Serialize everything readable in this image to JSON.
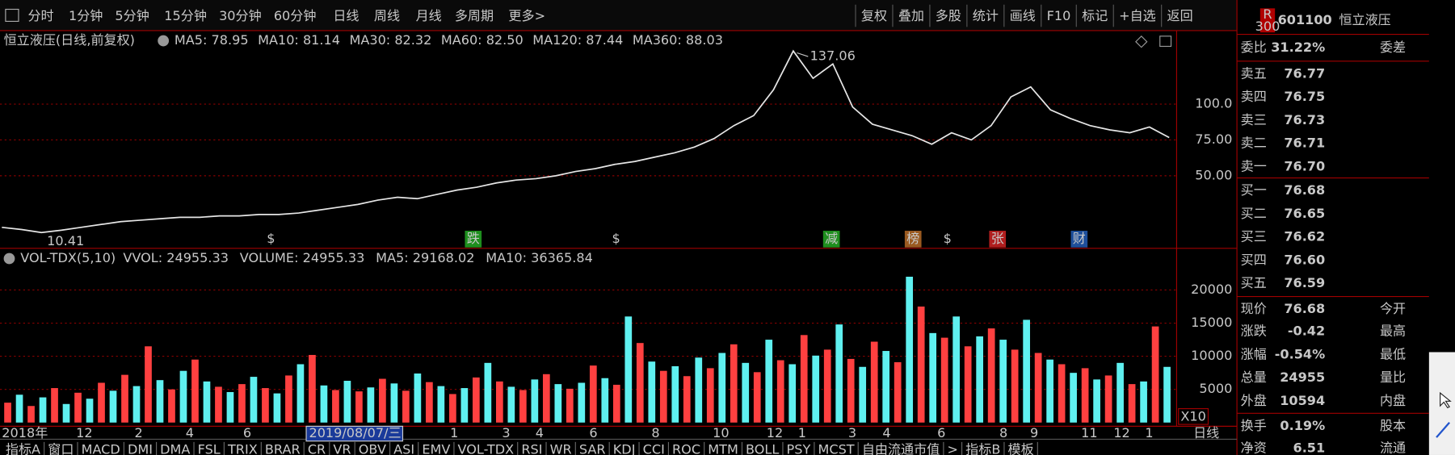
{
  "toolbar": {
    "periods": [
      "分时",
      "1分钟",
      "5分钟",
      "15分钟",
      "30分钟",
      "60分钟",
      "日线",
      "周线",
      "月线",
      "多周期",
      "更多>"
    ],
    "buttons": [
      "复权",
      "叠加",
      "多股",
      "统计",
      "画线",
      "F10",
      "标记",
      "+自选",
      "返回"
    ]
  },
  "chart_data": [
    {
      "type": "line",
      "title": "恒立液压(日线,前复权)",
      "ma_labels": [
        {
          "text": "MA5: 78.95",
          "color": "#e8e8e8"
        },
        {
          "text": "MA10: 81.14",
          "color": "#ffff00"
        },
        {
          "text": "MA30: 82.32",
          "color": "#ff33ff"
        },
        {
          "text": "MA60: 82.50",
          "color": "#33cc33"
        },
        {
          "text": "MA120: 87.44",
          "color": "#20a0a0"
        },
        {
          "text": "MA360: 88.03",
          "color": "#ff3030"
        }
      ],
      "values": [
        14,
        12.5,
        10.41,
        12,
        14,
        16,
        18,
        19,
        20,
        21,
        21,
        22,
        22,
        23,
        23,
        24,
        26,
        28,
        30,
        33,
        35,
        34,
        37,
        40,
        42,
        45,
        47,
        48,
        50,
        53,
        55,
        58,
        60,
        63,
        66,
        70,
        76,
        85,
        92,
        110,
        137.06,
        118,
        128,
        98,
        86,
        82,
        78,
        72,
        80,
        75,
        85,
        105,
        112,
        96,
        90,
        85,
        82,
        80,
        84,
        76.68
      ],
      "color": "#e6e6e6",
      "ylim": [
        0,
        150
      ],
      "yticks": [
        {
          "value": 50,
          "label": "50.00"
        },
        {
          "value": 75,
          "label": "75.00"
        },
        {
          "value": 100,
          "label": "100.0"
        }
      ],
      "grid": true,
      "annotations": [
        137.06,
        10.41
      ],
      "markers": [
        {
          "label": "$",
          "color": "#ff3030",
          "box": false
        },
        {
          "label": "跌",
          "color": "#1e8f1e",
          "box": true
        },
        {
          "label": "$",
          "color": "#ff3030",
          "box": false
        },
        {
          "label": "减",
          "color": "#1e8f1e",
          "box": true
        },
        {
          "label": "榜",
          "color": "#9a5a20",
          "box": true
        },
        {
          "label": "$",
          "color": "#ff3030",
          "box": false
        },
        {
          "label": "张",
          "color": "#b01e1e",
          "box": true
        },
        {
          "label": "财",
          "color": "#1e4f9a",
          "box": true
        }
      ]
    },
    {
      "type": "bar",
      "title": "VOL-TDX(5,10)",
      "indicator_labels": [
        {
          "text": "VVOL: 24955.33",
          "color": "#e8e8e8"
        },
        {
          "text": "VOLUME: 24955.33",
          "color": "#ffff00"
        },
        {
          "text": "MA5: 29168.02",
          "color": "#ffff00"
        },
        {
          "text": "MA10: 36365.84",
          "color": "#ff33ff"
        }
      ],
      "values": [
        3000,
        4200,
        2500,
        3800,
        5200,
        2800,
        4500,
        3600,
        6000,
        4800,
        7200,
        5500,
        11500,
        6400,
        5000,
        7800,
        9500,
        6200,
        5400,
        4600,
        5800,
        6900,
        5200,
        4400,
        7100,
        8800,
        10200,
        5600,
        4900,
        6300,
        4700,
        5300,
        6600,
        5900,
        4800,
        7400,
        6100,
        5500,
        4300,
        5200,
        6800,
        9000,
        6200,
        5400,
        4900,
        6500,
        7300,
        5800,
        5100,
        6000,
        8600,
        6700,
        5700,
        16000,
        12000,
        9200,
        7800,
        8500,
        7000,
        9800,
        8200,
        10500,
        11800,
        9000,
        7600,
        12500,
        9400,
        8800,
        13200,
        10100,
        11000,
        14800,
        9600,
        8400,
        12200,
        10800,
        9100,
        22000,
        17500,
        13500,
        12800,
        16000,
        11500,
        13000,
        14200,
        12500,
        11000,
        15500,
        10500,
        9500,
        8800,
        7500,
        8200,
        6500,
        7100,
        9000,
        5800,
        6200,
        14500,
        8400
      ],
      "colors": [
        "#ff4040",
        "#5ff0f0"
      ],
      "ylim": [
        0,
        26000
      ],
      "yticks": [
        5000,
        10000,
        15000,
        20000
      ],
      "grid": true,
      "multiplier": "X10"
    }
  ],
  "time_axis": {
    "labels": [
      "2018年",
      "12",
      "2",
      "4",
      "6",
      "1",
      "3",
      "4",
      "6",
      "8",
      "10",
      "12",
      "1",
      "3",
      "4",
      "6",
      "8",
      "9",
      "11",
      "12",
      "1"
    ],
    "cursor_date": "2019/08/07/三",
    "period": "日线"
  },
  "indicator_tabs": [
    "指标A",
    "窗口",
    "MACD",
    "DMI",
    "DMA",
    "FSL",
    "TRIX",
    "BRAR",
    "CR",
    "VR",
    "OBV",
    "ASI",
    "EMV",
    "VOL-TDX",
    "RSI",
    "WR",
    "SAR",
    "KDJ",
    "CCI",
    "ROC",
    "MTM",
    "BOLL",
    "PSY",
    "MCST",
    "自由流通市值",
    ">",
    "指标B",
    "模板"
  ],
  "quote": {
    "badge_top": "R",
    "badge_bottom": "300",
    "code": "601100",
    "name": "恒立液压",
    "order_ratio": {
      "label": "委比",
      "value": "31.22%",
      "label2": "委差"
    },
    "asks": [
      {
        "label": "卖五",
        "price": "76.77"
      },
      {
        "label": "卖四",
        "price": "76.75"
      },
      {
        "label": "卖三",
        "price": "76.73"
      },
      {
        "label": "卖二",
        "price": "76.71"
      },
      {
        "label": "卖一",
        "price": "76.70"
      }
    ],
    "bids": [
      {
        "label": "买一",
        "price": "76.68"
      },
      {
        "label": "买二",
        "price": "76.65"
      },
      {
        "label": "买三",
        "price": "76.62"
      },
      {
        "label": "买四",
        "price": "76.60"
      },
      {
        "label": "买五",
        "price": "76.59"
      }
    ],
    "stats": [
      {
        "label": "现价",
        "value": "76.68",
        "label2": "今开",
        "color": "#33ff33"
      },
      {
        "label": "涨跌",
        "value": "-0.42",
        "label2": "最高",
        "color": "#33ff33"
      },
      {
        "label": "涨幅",
        "value": "-0.54%",
        "label2": "最低",
        "color": "#33ff33"
      },
      {
        "label": "总量",
        "value": "24955",
        "label2": "量比",
        "color": "#ffff00"
      },
      {
        "label": "外盘",
        "value": "10594",
        "label2": "内盘",
        "color": "#ff3030"
      },
      {
        "label": "换手",
        "value": "0.19%",
        "label2": "股本",
        "color": "#e8e8e8"
      },
      {
        "label": "净资",
        "value": "6.51",
        "label2": "流通",
        "color": "#e8e8e8"
      }
    ]
  }
}
